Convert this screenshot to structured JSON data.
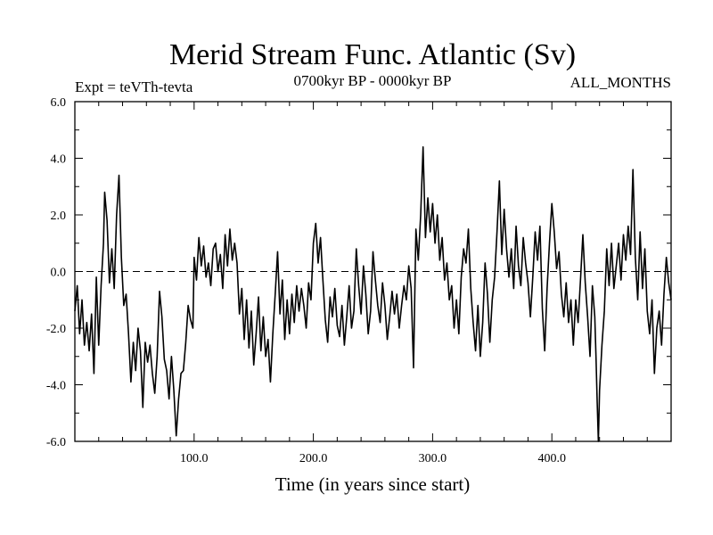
{
  "chart_data": {
    "type": "line",
    "title": "Merid Stream Func. Atlantic (Sv)",
    "subtitle_left": "Expt = teVTh-tevta",
    "subtitle_center": "0700kyr BP - 0000kyr BP",
    "subtitle_right": "ALL_MONTHS",
    "xlabel": "Time (in years since start)",
    "ylabel": "",
    "xlim": [
      0,
      500
    ],
    "ylim": [
      -6,
      6
    ],
    "x_ticks": [
      100,
      200,
      300,
      400
    ],
    "x_tick_labels": [
      "100.0",
      "200.0",
      "300.0",
      "400.0"
    ],
    "y_ticks": [
      -6,
      -4,
      -2,
      0,
      2,
      4,
      6
    ],
    "y_tick_labels": [
      "-6.0",
      "-4.0",
      "-2.0",
      "0.0",
      "2.0",
      "4.0",
      "6.0"
    ],
    "reference_line": {
      "y": 0,
      "style": "dashed"
    },
    "grid": false,
    "series": [
      {
        "points": [
          [
            0,
            -1.4
          ],
          [
            2,
            -0.5
          ],
          [
            4,
            -2.2
          ],
          [
            6,
            -1.0
          ],
          [
            8,
            -2.6
          ],
          [
            10,
            -1.8
          ],
          [
            12,
            -2.8
          ],
          [
            14,
            -1.5
          ],
          [
            16,
            -3.6
          ],
          [
            18,
            -0.2
          ],
          [
            20,
            -2.6
          ],
          [
            22,
            -0.5
          ],
          [
            24,
            1.0
          ],
          [
            25,
            2.8
          ],
          [
            27,
            1.8
          ],
          [
            29,
            -0.4
          ],
          [
            31,
            0.8
          ],
          [
            33,
            -0.6
          ],
          [
            35,
            2.0
          ],
          [
            37,
            3.4
          ],
          [
            39,
            0.5
          ],
          [
            41,
            -1.2
          ],
          [
            43,
            -0.8
          ],
          [
            45,
            -2.2
          ],
          [
            47,
            -3.9
          ],
          [
            49,
            -2.5
          ],
          [
            51,
            -3.5
          ],
          [
            53,
            -2.0
          ],
          [
            55,
            -2.8
          ],
          [
            57,
            -4.8
          ],
          [
            59,
            -2.5
          ],
          [
            61,
            -3.2
          ],
          [
            63,
            -2.6
          ],
          [
            65,
            -3.6
          ],
          [
            67,
            -4.3
          ],
          [
            69,
            -3.0
          ],
          [
            71,
            -0.7
          ],
          [
            73,
            -1.6
          ],
          [
            75,
            -3.1
          ],
          [
            77,
            -3.5
          ],
          [
            79,
            -4.5
          ],
          [
            81,
            -3.0
          ],
          [
            83,
            -4.2
          ],
          [
            85,
            -5.8
          ],
          [
            87,
            -4.5
          ],
          [
            89,
            -3.6
          ],
          [
            91,
            -3.5
          ],
          [
            93,
            -2.5
          ],
          [
            95,
            -1.2
          ],
          [
            97,
            -1.7
          ],
          [
            99,
            -2.0
          ],
          [
            100,
            0.5
          ],
          [
            102,
            -0.3
          ],
          [
            104,
            1.2
          ],
          [
            106,
            0.2
          ],
          [
            108,
            0.9
          ],
          [
            110,
            -0.2
          ],
          [
            112,
            0.3
          ],
          [
            114,
            -0.5
          ],
          [
            116,
            0.8
          ],
          [
            118,
            1.0
          ],
          [
            120,
            0.0
          ],
          [
            122,
            0.6
          ],
          [
            124,
            -0.6
          ],
          [
            126,
            1.3
          ],
          [
            128,
            0.2
          ],
          [
            130,
            1.5
          ],
          [
            132,
            0.4
          ],
          [
            134,
            1.0
          ],
          [
            136,
            0.3
          ],
          [
            138,
            -1.5
          ],
          [
            140,
            -0.6
          ],
          [
            142,
            -2.4
          ],
          [
            144,
            -1.0
          ],
          [
            146,
            -2.7
          ],
          [
            148,
            -1.4
          ],
          [
            150,
            -3.3
          ],
          [
            152,
            -2.2
          ],
          [
            154,
            -0.9
          ],
          [
            156,
            -2.8
          ],
          [
            158,
            -1.6
          ],
          [
            160,
            -3.0
          ],
          [
            162,
            -2.4
          ],
          [
            164,
            -3.9
          ],
          [
            166,
            -2.2
          ],
          [
            168,
            -0.8
          ],
          [
            170,
            0.7
          ],
          [
            172,
            -1.5
          ],
          [
            174,
            -0.3
          ],
          [
            176,
            -2.4
          ],
          [
            178,
            -1.0
          ],
          [
            180,
            -2.2
          ],
          [
            182,
            -0.8
          ],
          [
            184,
            -1.8
          ],
          [
            186,
            -0.5
          ],
          [
            188,
            -1.4
          ],
          [
            190,
            -0.6
          ],
          [
            192,
            -1.2
          ],
          [
            194,
            -2.0
          ],
          [
            196,
            -0.4
          ],
          [
            198,
            -1.0
          ],
          [
            200,
            1.0
          ],
          [
            202,
            1.7
          ],
          [
            204,
            0.3
          ],
          [
            206,
            1.2
          ],
          [
            208,
            -0.3
          ],
          [
            210,
            -1.7
          ],
          [
            212,
            -2.5
          ],
          [
            214,
            -0.9
          ],
          [
            216,
            -1.6
          ],
          [
            218,
            -0.6
          ],
          [
            220,
            -1.9
          ],
          [
            222,
            -2.3
          ],
          [
            224,
            -1.2
          ],
          [
            226,
            -2.6
          ],
          [
            228,
            -1.6
          ],
          [
            230,
            -0.5
          ],
          [
            232,
            -2.0
          ],
          [
            234,
            -1.4
          ],
          [
            236,
            0.8
          ],
          [
            238,
            -0.5
          ],
          [
            240,
            -1.5
          ],
          [
            242,
            0.2
          ],
          [
            244,
            -0.8
          ],
          [
            246,
            -2.2
          ],
          [
            248,
            -1.4
          ],
          [
            250,
            0.7
          ],
          [
            252,
            -0.3
          ],
          [
            254,
            -1.2
          ],
          [
            256,
            -1.8
          ],
          [
            258,
            -0.4
          ],
          [
            260,
            -1.2
          ],
          [
            262,
            -2.4
          ],
          [
            264,
            -1.6
          ],
          [
            266,
            -0.7
          ],
          [
            268,
            -1.5
          ],
          [
            270,
            -0.8
          ],
          [
            272,
            -2.0
          ],
          [
            274,
            -1.2
          ],
          [
            276,
            -0.5
          ],
          [
            278,
            -1.0
          ],
          [
            280,
            0.2
          ],
          [
            282,
            -0.6
          ],
          [
            284,
            -3.4
          ],
          [
            286,
            1.5
          ],
          [
            288,
            0.4
          ],
          [
            290,
            2.0
          ],
          [
            292,
            4.4
          ],
          [
            294,
            1.2
          ],
          [
            296,
            2.6
          ],
          [
            298,
            1.4
          ],
          [
            300,
            2.4
          ],
          [
            302,
            1.0
          ],
          [
            304,
            2.0
          ],
          [
            306,
            0.4
          ],
          [
            308,
            1.2
          ],
          [
            310,
            -0.3
          ],
          [
            312,
            0.3
          ],
          [
            314,
            -1.0
          ],
          [
            316,
            -0.5
          ],
          [
            318,
            -2.0
          ],
          [
            320,
            -1.0
          ],
          [
            322,
            -2.2
          ],
          [
            324,
            -0.2
          ],
          [
            326,
            0.8
          ],
          [
            328,
            0.3
          ],
          [
            330,
            1.5
          ],
          [
            332,
            -0.6
          ],
          [
            334,
            -1.8
          ],
          [
            336,
            -2.8
          ],
          [
            338,
            -1.2
          ],
          [
            340,
            -3.0
          ],
          [
            342,
            -1.8
          ],
          [
            344,
            0.3
          ],
          [
            346,
            -0.8
          ],
          [
            348,
            -2.5
          ],
          [
            350,
            -1.0
          ],
          [
            352,
            -0.2
          ],
          [
            354,
            1.4
          ],
          [
            356,
            3.2
          ],
          [
            358,
            0.6
          ],
          [
            360,
            2.2
          ],
          [
            362,
            0.8
          ],
          [
            364,
            -0.2
          ],
          [
            366,
            0.8
          ],
          [
            368,
            -0.6
          ],
          [
            370,
            1.6
          ],
          [
            372,
            0.2
          ],
          [
            374,
            -0.5
          ],
          [
            376,
            1.2
          ],
          [
            378,
            0.3
          ],
          [
            380,
            -0.4
          ],
          [
            382,
            -1.6
          ],
          [
            384,
            -0.2
          ],
          [
            386,
            1.4
          ],
          [
            388,
            0.4
          ],
          [
            390,
            1.6
          ],
          [
            392,
            -1.3
          ],
          [
            394,
            -2.8
          ],
          [
            396,
            -0.6
          ],
          [
            398,
            1.0
          ],
          [
            400,
            2.4
          ],
          [
            402,
            1.4
          ],
          [
            404,
            0.1
          ],
          [
            406,
            0.7
          ],
          [
            408,
            -0.8
          ],
          [
            410,
            -1.6
          ],
          [
            412,
            -0.4
          ],
          [
            414,
            -1.8
          ],
          [
            416,
            -1.0
          ],
          [
            418,
            -2.6
          ],
          [
            420,
            -1.0
          ],
          [
            422,
            -1.8
          ],
          [
            424,
            -0.3
          ],
          [
            426,
            1.3
          ],
          [
            428,
            -0.4
          ],
          [
            430,
            -1.6
          ],
          [
            432,
            -3.0
          ],
          [
            434,
            -0.5
          ],
          [
            436,
            -1.6
          ],
          [
            437,
            -3.0
          ],
          [
            438,
            -4.6
          ],
          [
            439,
            -6.0
          ],
          [
            440,
            -4.2
          ],
          [
            442,
            -2.6
          ],
          [
            444,
            -1.4
          ],
          [
            446,
            0.8
          ],
          [
            448,
            -0.5
          ],
          [
            450,
            1.0
          ],
          [
            452,
            -0.6
          ],
          [
            454,
            0.2
          ],
          [
            456,
            1.0
          ],
          [
            458,
            -0.3
          ],
          [
            460,
            1.3
          ],
          [
            462,
            0.4
          ],
          [
            464,
            1.6
          ],
          [
            466,
            0.6
          ],
          [
            468,
            3.6
          ],
          [
            470,
            0.5
          ],
          [
            472,
            -1.0
          ],
          [
            474,
            1.4
          ],
          [
            476,
            -0.6
          ],
          [
            478,
            0.8
          ],
          [
            480,
            -1.4
          ],
          [
            482,
            -2.2
          ],
          [
            484,
            -1.0
          ],
          [
            486,
            -3.6
          ],
          [
            488,
            -2.0
          ],
          [
            490,
            -1.4
          ],
          [
            492,
            -2.6
          ],
          [
            494,
            -0.8
          ],
          [
            496,
            0.5
          ],
          [
            498,
            -0.4
          ],
          [
            500,
            -1.0
          ]
        ]
      }
    ]
  }
}
